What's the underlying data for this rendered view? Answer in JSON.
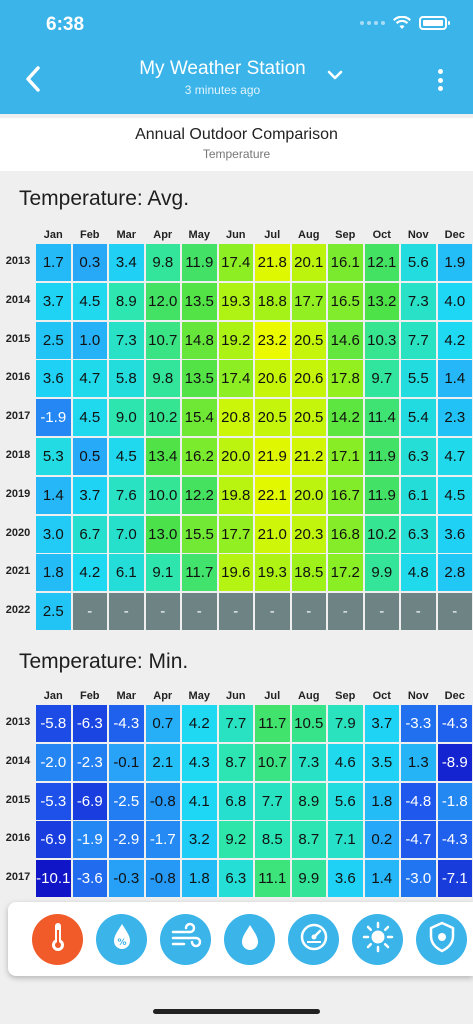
{
  "status": {
    "time": "6:38"
  },
  "header": {
    "title": "My Weather Station",
    "subtitle": "3 minutes ago"
  },
  "chart_header": {
    "title": "Annual Outdoor Comparison",
    "subtitle": "Temperature"
  },
  "colors": {
    "header_bg": "#3ab4e9",
    "active_tab": "#f15a29",
    "empty_cell": "#6e8484"
  },
  "chart_data": [
    {
      "type": "heatmap",
      "title": "Temperature: Avg.",
      "categories": [
        "Jan",
        "Feb",
        "Mar",
        "Apr",
        "May",
        "Jun",
        "Jul",
        "Aug",
        "Sep",
        "Oct",
        "Nov",
        "Dec"
      ],
      "rows": [
        {
          "year": "2013",
          "values": [
            1.7,
            0.3,
            3.4,
            9.8,
            11.9,
            17.4,
            21.8,
            20.1,
            16.1,
            12.1,
            5.6,
            1.9
          ]
        },
        {
          "year": "2014",
          "values": [
            3.7,
            4.5,
            8.9,
            12.0,
            13.5,
            19.3,
            18.8,
            17.7,
            16.5,
            13.2,
            7.3,
            4.0
          ]
        },
        {
          "year": "2015",
          "values": [
            2.5,
            1.0,
            7.3,
            10.7,
            14.8,
            19.2,
            23.2,
            20.5,
            14.6,
            10.3,
            7.7,
            4.2
          ]
        },
        {
          "year": "2016",
          "values": [
            3.6,
            4.7,
            5.8,
            9.8,
            13.5,
            17.4,
            20.6,
            20.6,
            17.8,
            9.7,
            5.5,
            1.4
          ]
        },
        {
          "year": "2017",
          "values": [
            -1.9,
            4.5,
            9.0,
            10.2,
            15.4,
            20.8,
            20.5,
            20.5,
            14.2,
            11.4,
            5.4,
            2.3
          ]
        },
        {
          "year": "2018",
          "values": [
            5.3,
            0.5,
            4.5,
            13.4,
            16.2,
            20.0,
            21.9,
            21.2,
            17.1,
            11.9,
            6.3,
            4.7
          ]
        },
        {
          "year": "2019",
          "values": [
            1.4,
            3.7,
            7.6,
            10.0,
            12.2,
            19.8,
            22.1,
            20.0,
            16.7,
            11.9,
            6.1,
            4.5
          ]
        },
        {
          "year": "2020",
          "values": [
            3.0,
            6.7,
            7.0,
            13.0,
            15.5,
            17.7,
            21.0,
            20.3,
            16.8,
            10.2,
            6.3,
            3.6
          ]
        },
        {
          "year": "2021",
          "values": [
            1.8,
            4.2,
            6.1,
            9.1,
            11.7,
            19.6,
            19.3,
            18.5,
            17.2,
            9.9,
            4.8,
            2.8
          ]
        },
        {
          "year": "2022",
          "values": [
            2.5,
            null,
            null,
            null,
            null,
            null,
            null,
            null,
            null,
            null,
            null,
            null
          ]
        }
      ]
    },
    {
      "type": "heatmap",
      "title": "Temperature: Min.",
      "categories": [
        "Jan",
        "Feb",
        "Mar",
        "Apr",
        "May",
        "Jun",
        "Jul",
        "Aug",
        "Sep",
        "Oct",
        "Nov",
        "Dec"
      ],
      "rows": [
        {
          "year": "2013",
          "values": [
            -5.8,
            -6.3,
            -4.3,
            0.7,
            4.2,
            7.7,
            11.7,
            10.5,
            7.9,
            3.7,
            -3.3,
            -4.3
          ]
        },
        {
          "year": "2014",
          "values": [
            -2.0,
            -2.3,
            -0.1,
            2.1,
            4.3,
            8.7,
            10.7,
            7.3,
            4.6,
            3.5,
            1.3,
            -8.9
          ]
        },
        {
          "year": "2015",
          "values": [
            -5.3,
            -6.9,
            -2.5,
            -0.8,
            4.1,
            6.8,
            7.7,
            8.9,
            5.6,
            1.8,
            -4.8,
            -1.8
          ]
        },
        {
          "year": "2016",
          "values": [
            -6.9,
            -1.9,
            -2.9,
            -1.7,
            3.2,
            9.2,
            8.5,
            8.7,
            7.1,
            0.2,
            -4.7,
            -4.3
          ]
        },
        {
          "year": "2017",
          "values": [
            -10.1,
            -3.6,
            -0.3,
            -0.8,
            1.8,
            6.3,
            11.1,
            9.9,
            3.6,
            1.4,
            -3.0,
            -7.1
          ]
        }
      ]
    }
  ],
  "empty_label": "-",
  "tabs": [
    {
      "name": "tab-temperature",
      "icon": "thermometer-icon",
      "active": true
    },
    {
      "name": "tab-humidity",
      "icon": "humidity-icon",
      "active": false
    },
    {
      "name": "tab-wind",
      "icon": "wind-icon",
      "active": false
    },
    {
      "name": "tab-rain",
      "icon": "rain-drop-icon",
      "active": false
    },
    {
      "name": "tab-pressure",
      "icon": "gauge-icon",
      "active": false
    },
    {
      "name": "tab-solar",
      "icon": "sun-icon",
      "active": false
    },
    {
      "name": "tab-uv",
      "icon": "uv-shield-icon",
      "active": false
    }
  ]
}
